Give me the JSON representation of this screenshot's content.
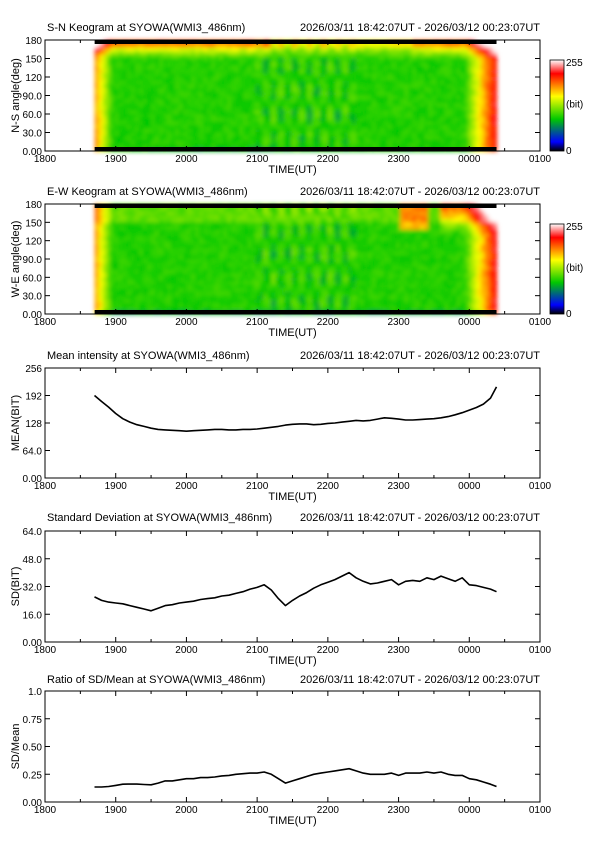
{
  "figure": {
    "station": "SYOWA",
    "instrument": "WMI3_486nm",
    "time_range": "2026/03/11 18:42:07UT - 2026/03/12 00:23:07UT"
  },
  "chart_data": [
    {
      "type": "heatmap",
      "title": "S-N Keogram at SYOWA(WMI3_486nm)",
      "subtitle": "2026/03/11 18:42:07UT - 2026/03/12 00:23:07UT",
      "xlabel": "TIME(UT)",
      "ylabel": "N-S angle(deg)",
      "x_ticks": [
        "1800",
        "1900",
        "2000",
        "2100",
        "2200",
        "2300",
        "0000",
        "0100"
      ],
      "y_ticks": [
        "0.00",
        "30.0",
        "60.0",
        "90.0",
        "120",
        "150",
        "180"
      ],
      "xlim_hours": [
        18,
        25
      ],
      "ylim": [
        0,
        180
      ],
      "data_start_hour": 18.702,
      "data_end_hour": 24.385,
      "colorbar": {
        "min_label": "0",
        "max_label": "255",
        "unit_label": "(bit)"
      },
      "colormap": [
        "#000000",
        "#0000ff",
        "#00c800",
        "#ffff00",
        "#ff0000",
        "#ffffff"
      ]
    },
    {
      "type": "heatmap",
      "title": "E-W Keogram at SYOWA(WMI3_486nm)",
      "subtitle": "2026/03/11 18:42:07UT - 2026/03/12 00:23:07UT",
      "xlabel": "TIME(UT)",
      "ylabel": "W-E angle(deg)",
      "x_ticks": [
        "1800",
        "1900",
        "2000",
        "2100",
        "2200",
        "2300",
        "0000",
        "0100"
      ],
      "y_ticks": [
        "0.00",
        "30.0",
        "60.0",
        "90.0",
        "120",
        "150",
        "180"
      ],
      "xlim_hours": [
        18,
        25
      ],
      "ylim": [
        0,
        180
      ],
      "data_start_hour": 18.702,
      "data_end_hour": 24.385,
      "colorbar": {
        "min_label": "0",
        "max_label": "255",
        "unit_label": "(bit)"
      },
      "colormap": [
        "#000000",
        "#0000ff",
        "#00c800",
        "#ffff00",
        "#ff0000",
        "#ffffff"
      ]
    },
    {
      "type": "line",
      "title": "Mean intensity at SYOWA(WMI3_486nm)",
      "subtitle": "2026/03/11 18:42:07UT - 2026/03/12 00:23:07UT",
      "xlabel": "TIME(UT)",
      "ylabel": "MEAN(BIT)",
      "x_ticks": [
        "1800",
        "1900",
        "2000",
        "2100",
        "2200",
        "2300",
        "0000",
        "0100"
      ],
      "y_ticks": [
        "0.00",
        "64.0",
        "128",
        "192",
        "256"
      ],
      "xlim_hours": [
        18,
        25
      ],
      "ylim": [
        0,
        256
      ],
      "x_hours": [
        18.7,
        18.8,
        18.9,
        19.0,
        19.1,
        19.2,
        19.3,
        19.4,
        19.5,
        19.6,
        19.7,
        19.8,
        19.9,
        20.0,
        20.1,
        20.2,
        20.3,
        20.4,
        20.5,
        20.6,
        20.7,
        20.8,
        20.9,
        21.0,
        21.1,
        21.2,
        21.3,
        21.4,
        21.5,
        21.6,
        21.7,
        21.8,
        21.9,
        22.0,
        22.1,
        22.2,
        22.3,
        22.4,
        22.5,
        22.6,
        22.7,
        22.8,
        22.9,
        23.0,
        23.1,
        23.2,
        23.3,
        23.4,
        23.5,
        23.6,
        23.7,
        23.8,
        23.9,
        24.0,
        24.1,
        24.2,
        24.3,
        24.385
      ],
      "values": [
        192,
        178,
        165,
        150,
        138,
        130,
        124,
        120,
        116,
        113,
        112,
        111,
        110,
        109,
        110,
        111,
        112,
        113,
        113,
        112,
        112,
        113,
        113,
        114,
        116,
        118,
        120,
        123,
        125,
        126,
        126,
        124,
        125,
        127,
        128,
        130,
        132,
        134,
        133,
        134,
        137,
        140,
        139,
        137,
        135,
        135,
        136,
        137,
        138,
        140,
        143,
        147,
        152,
        158,
        164,
        172,
        186,
        212
      ]
    },
    {
      "type": "line",
      "title": "Standard Deviation at SYOWA(WMI3_486nm)",
      "subtitle": "2026/03/11 18:42:07UT - 2026/03/12 00:23:07UT",
      "xlabel": "TIME(UT)",
      "ylabel": "SD(BIT)",
      "x_ticks": [
        "1800",
        "1900",
        "2000",
        "2100",
        "2200",
        "2300",
        "0000",
        "0100"
      ],
      "y_ticks": [
        "0.00",
        "16.0",
        "32.0",
        "48.0",
        "64.0"
      ],
      "xlim_hours": [
        18,
        25
      ],
      "ylim": [
        0,
        64
      ],
      "x_hours": [
        18.7,
        18.8,
        18.9,
        19.0,
        19.1,
        19.2,
        19.3,
        19.4,
        19.5,
        19.6,
        19.7,
        19.8,
        19.9,
        20.0,
        20.1,
        20.2,
        20.3,
        20.4,
        20.5,
        20.6,
        20.7,
        20.8,
        20.9,
        21.0,
        21.1,
        21.2,
        21.3,
        21.4,
        21.5,
        21.6,
        21.7,
        21.8,
        21.9,
        22.0,
        22.1,
        22.2,
        22.3,
        22.4,
        22.5,
        22.6,
        22.7,
        22.8,
        22.9,
        23.0,
        23.1,
        23.2,
        23.3,
        23.4,
        23.5,
        23.6,
        23.7,
        23.8,
        23.9,
        24.0,
        24.1,
        24.2,
        24.3,
        24.385
      ],
      "values": [
        26.0,
        24.0,
        23.0,
        22.5,
        22.0,
        21.0,
        20.0,
        19.0,
        18.0,
        19.5,
        21.0,
        21.5,
        22.5,
        23.0,
        23.5,
        24.5,
        25.0,
        25.5,
        26.5,
        27.0,
        28.0,
        29.0,
        30.5,
        31.5,
        33.0,
        30.0,
        25.0,
        21.0,
        24.0,
        26.5,
        28.5,
        31.0,
        33.0,
        34.5,
        36.0,
        38.0,
        40.0,
        37.0,
        35.0,
        33.5,
        34.0,
        35.0,
        36.0,
        33.0,
        35.0,
        35.5,
        35.0,
        37.0,
        36.0,
        38.0,
        36.5,
        35.0,
        37.0,
        33.0,
        32.5,
        31.5,
        30.5,
        29.0
      ]
    },
    {
      "type": "line",
      "title": "Ratio of SD/Mean at SYOWA(WMI3_486nm)",
      "subtitle": "2026/03/11 18:42:07UT - 2026/03/12 00:23:07UT",
      "xlabel": "TIME(UT)",
      "ylabel": "SD/Mean",
      "x_ticks": [
        "1800",
        "1900",
        "2000",
        "2100",
        "2200",
        "2300",
        "0000",
        "0100"
      ],
      "y_ticks": [
        "0.00",
        "0.25",
        "0.50",
        "0.75",
        "1.0"
      ],
      "xlim_hours": [
        18,
        25
      ],
      "ylim": [
        0,
        1
      ],
      "x_hours": [
        18.7,
        18.8,
        18.9,
        19.0,
        19.1,
        19.2,
        19.3,
        19.4,
        19.5,
        19.6,
        19.7,
        19.8,
        19.9,
        20.0,
        20.1,
        20.2,
        20.3,
        20.4,
        20.5,
        20.6,
        20.7,
        20.8,
        20.9,
        21.0,
        21.1,
        21.2,
        21.3,
        21.4,
        21.5,
        21.6,
        21.7,
        21.8,
        21.9,
        22.0,
        22.1,
        22.2,
        22.3,
        22.4,
        22.5,
        22.6,
        22.7,
        22.8,
        22.9,
        23.0,
        23.1,
        23.2,
        23.3,
        23.4,
        23.5,
        23.6,
        23.7,
        23.8,
        23.9,
        24.0,
        24.1,
        24.2,
        24.3,
        24.385
      ],
      "values": [
        0.135,
        0.135,
        0.14,
        0.15,
        0.16,
        0.162,
        0.161,
        0.158,
        0.155,
        0.17,
        0.19,
        0.19,
        0.2,
        0.21,
        0.21,
        0.22,
        0.22,
        0.225,
        0.235,
        0.24,
        0.25,
        0.255,
        0.26,
        0.26,
        0.27,
        0.25,
        0.21,
        0.17,
        0.19,
        0.21,
        0.23,
        0.25,
        0.26,
        0.27,
        0.28,
        0.29,
        0.3,
        0.28,
        0.26,
        0.25,
        0.25,
        0.25,
        0.26,
        0.24,
        0.26,
        0.26,
        0.26,
        0.27,
        0.26,
        0.27,
        0.25,
        0.24,
        0.24,
        0.21,
        0.2,
        0.18,
        0.16,
        0.14
      ]
    }
  ]
}
